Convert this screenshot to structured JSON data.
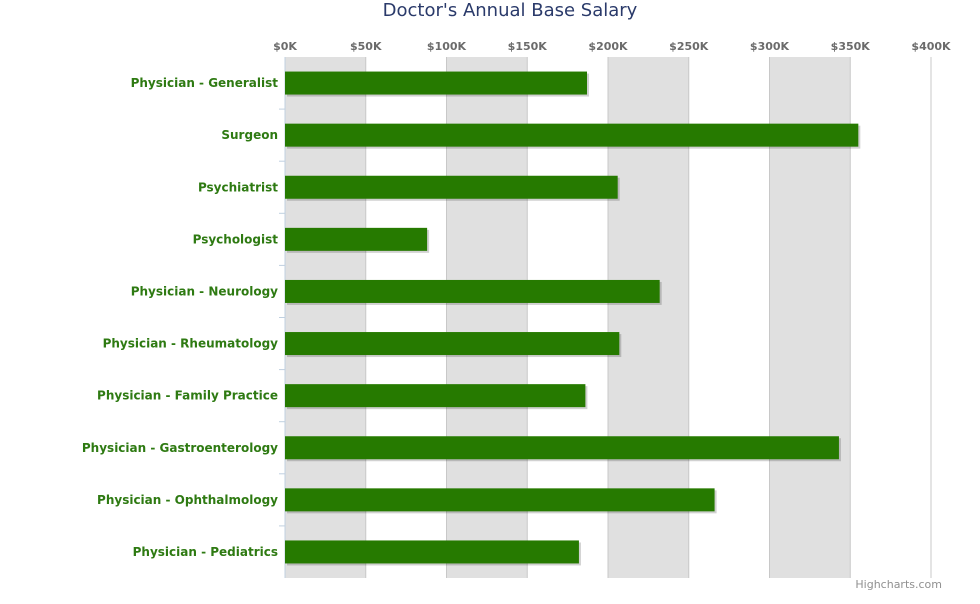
{
  "chart_data": {
    "type": "bar",
    "orientation": "horizontal",
    "title": "Doctor's Annual Base Salary",
    "xlabel": "",
    "ylabel": "",
    "categories": [
      "Physician - Generalist",
      "Surgeon",
      "Psychiatrist",
      "Psychologist",
      "Physician - Neurology",
      "Physician - Rheumatology",
      "Physician - Family Practice",
      "Physician - Gastroenterology",
      "Physician - Ophthalmology",
      "Physician - Pediatrics"
    ],
    "values": [
      187000,
      355000,
      206000,
      88000,
      232000,
      207000,
      186000,
      343000,
      266000,
      182000
    ],
    "value_axis_range": [
      0,
      400000
    ],
    "value_axis_ticks": [
      0,
      50000,
      100000,
      150000,
      200000,
      250000,
      300000,
      350000,
      400000
    ],
    "value_axis_tick_labels": [
      "$0K",
      "$50K",
      "$100K",
      "$150K",
      "$200K",
      "$250K",
      "$300K",
      "$350K",
      "$400K"
    ],
    "alternate_bands": true,
    "legend": "none",
    "bar_color": "#267a00",
    "band_color": "#e0e0e0"
  },
  "credits": "Highcharts.com"
}
